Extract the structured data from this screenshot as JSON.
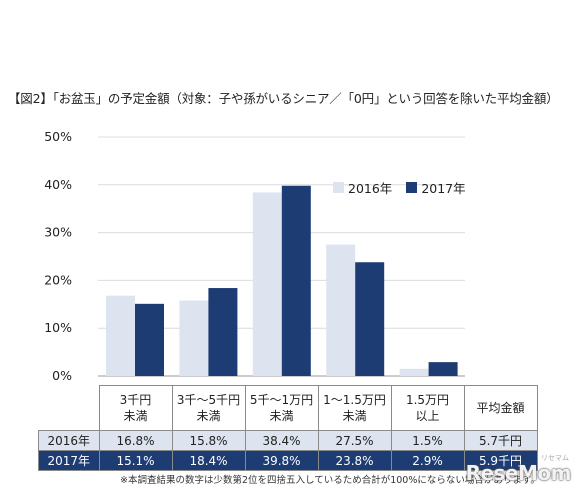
{
  "title": "【図2】「お盆玉」の予定金額（対象：子や孫がいるシニア／「0円」という回答を除いた平均金額）",
  "chart_data": {
    "type": "bar",
    "categories": [
      "3千円\n未満",
      "3千～5千円\n未満",
      "5千～1万円\n未満",
      "1～1.5万円\n未満",
      "1.5万円\n以上"
    ],
    "series": [
      {
        "name": "2016年",
        "values": [
          16.8,
          15.8,
          38.4,
          27.5,
          1.5
        ],
        "color": "#dde4ef"
      },
      {
        "name": "2017年",
        "values": [
          15.1,
          18.4,
          39.8,
          23.8,
          2.9
        ],
        "color": "#1d3c73"
      }
    ],
    "ylim": [
      0,
      50
    ],
    "yticks": [
      "0%",
      "10%",
      "20%",
      "30%",
      "40%",
      "50%"
    ],
    "grid": true,
    "legend": "top-right"
  },
  "table": {
    "headers": [
      "3千円\n未満",
      "3千～5千円\n未満",
      "5千～1万円\n未満",
      "1～1.5万円\n未満",
      "1.5万円\n以上",
      "平均金額"
    ],
    "rows": [
      {
        "label": "2016年",
        "cells": [
          "16.8%",
          "15.8%",
          "38.4%",
          "27.5%",
          "1.5%",
          "5.7千円"
        ]
      },
      {
        "label": "2017年",
        "cells": [
          "15.1%",
          "18.4%",
          "39.8%",
          "23.8%",
          "2.9%",
          "5.9千円"
        ]
      }
    ]
  },
  "note": "※本調査結果の数字は少数第2位を四捨五入しているため合計が100%にならない場合があります。",
  "logo": "ReseMom",
  "logo_sub": "リセマム"
}
